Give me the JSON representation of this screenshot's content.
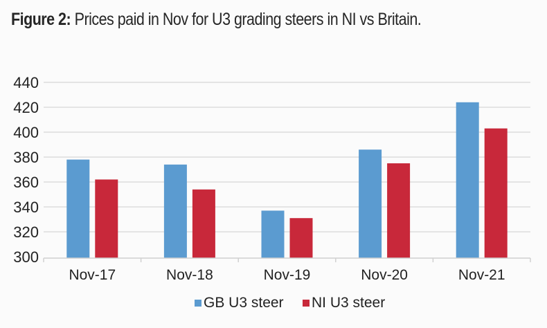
{
  "title": {
    "lead": "Figure 2:",
    "text": "Prices paid in Nov for U3 grading steers in NI vs Britain."
  },
  "chart_data": {
    "type": "bar",
    "title": "Figure 2: Prices paid in Nov for U3 grading steers in NI vs Britain.",
    "xlabel": "",
    "ylabel": "",
    "categories": [
      "Nov-17",
      "Nov-18",
      "Nov-19",
      "Nov-20",
      "Nov-21"
    ],
    "series": [
      {
        "name": "GB U3 steer",
        "color": "#5b9bd0",
        "values": [
          378,
          374,
          337,
          386,
          424
        ]
      },
      {
        "name": "NI U3 steer",
        "color": "#c8283a",
        "values": [
          362,
          354,
          331,
          375,
          403
        ]
      }
    ],
    "ylim": [
      300,
      440
    ],
    "yticks": [
      300,
      320,
      340,
      360,
      380,
      400,
      420,
      440
    ],
    "grid": true,
    "legend_position": "bottom"
  }
}
